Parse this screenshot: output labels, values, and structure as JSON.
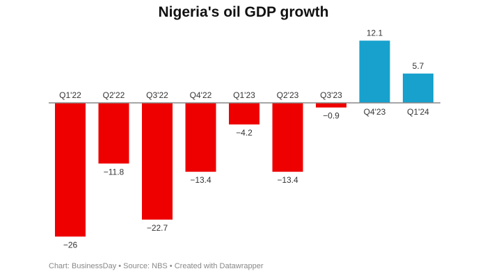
{
  "chart_data": {
    "type": "bar",
    "title": "Nigeria's oil GDP growth",
    "categories": [
      "Q1'22",
      "Q2'22",
      "Q3'22",
      "Q4'22",
      "Q1'23",
      "Q2'23",
      "Q3'23",
      "Q4'23",
      "Q1'24"
    ],
    "values": [
      -26,
      -11.8,
      -22.7,
      -13.4,
      -4.2,
      -13.4,
      -0.9,
      12.1,
      5.7
    ],
    "value_labels": [
      "−26",
      "−11.8",
      "−22.7",
      "−13.4",
      "−4.2",
      "−13.4",
      "−0.9",
      "12.1",
      "5.7"
    ],
    "colors": {
      "negative": "#ee0000",
      "positive": "#18a1cd",
      "baseline": "#888888"
    },
    "grid": false,
    "xlabel": "",
    "ylabel": ""
  },
  "footer": "Chart: BusinessDay • Source: NBS • Created with Datawrapper"
}
